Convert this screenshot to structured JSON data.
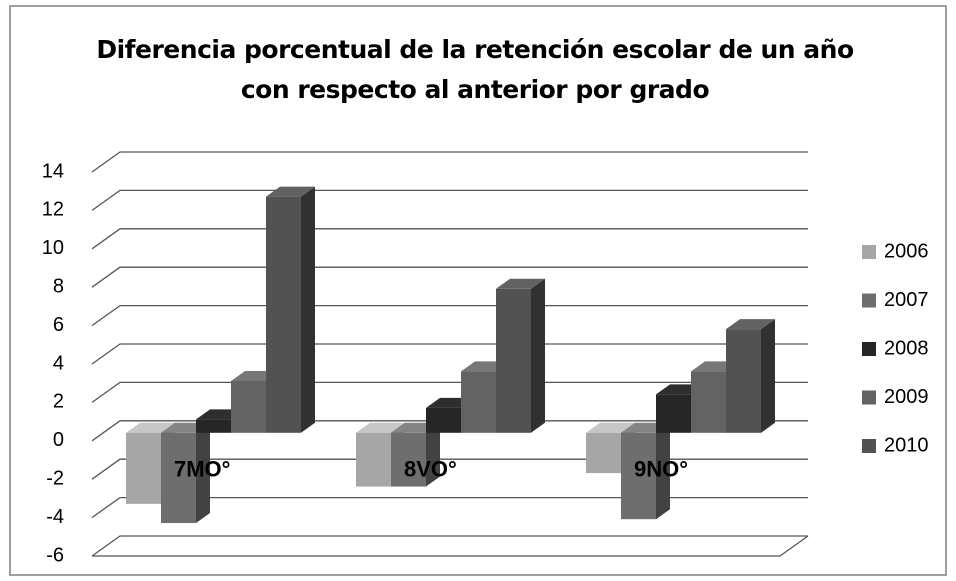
{
  "chart_data": {
    "type": "bar3d",
    "title": "Diferencia porcentual de la retención escolar  de un año con respecto al anterior  por grado",
    "categories": [
      "7MO°",
      "8VO°",
      "9NO°"
    ],
    "series": [
      {
        "name": "2006",
        "color": "#a6a6a6",
        "values": [
          -3.7,
          -2.8,
          -2.1
        ]
      },
      {
        "name": "2007",
        "color": "#6e6e6e",
        "values": [
          -4.7,
          -2.8,
          -4.5
        ]
      },
      {
        "name": "2008",
        "color": "#262626",
        "values": [
          0.7,
          1.3,
          2.0
        ]
      },
      {
        "name": "2009",
        "color": "#636363",
        "values": [
          2.7,
          3.2,
          3.2
        ]
      },
      {
        "name": "2010",
        "color": "#525252",
        "values": [
          12.3,
          7.5,
          5.4
        ]
      }
    ],
    "ylim": [
      -6,
      14
    ],
    "yticks": [
      -6,
      -4,
      -2,
      0,
      2,
      4,
      6,
      8,
      10,
      12,
      14
    ],
    "grid": true,
    "legend": "right"
  }
}
